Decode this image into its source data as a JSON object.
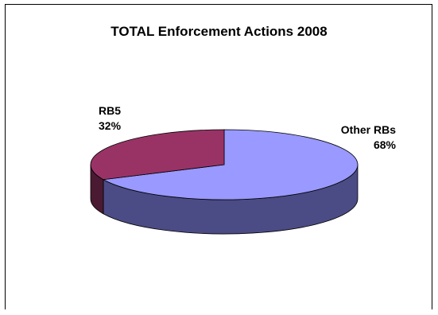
{
  "chart_data": {
    "type": "pie",
    "title": "TOTAL Enforcement Actions 2008",
    "three_d": true,
    "slices": [
      {
        "label": "Other RBs",
        "percent_label": "68%",
        "value": 68,
        "top_color": "#9999ff",
        "side_color": "#4b4b85"
      },
      {
        "label": "RB5",
        "percent_label": "32%",
        "value": 32,
        "top_color": "#993366",
        "side_color": "#4a1a32"
      }
    ],
    "legend": "none"
  }
}
